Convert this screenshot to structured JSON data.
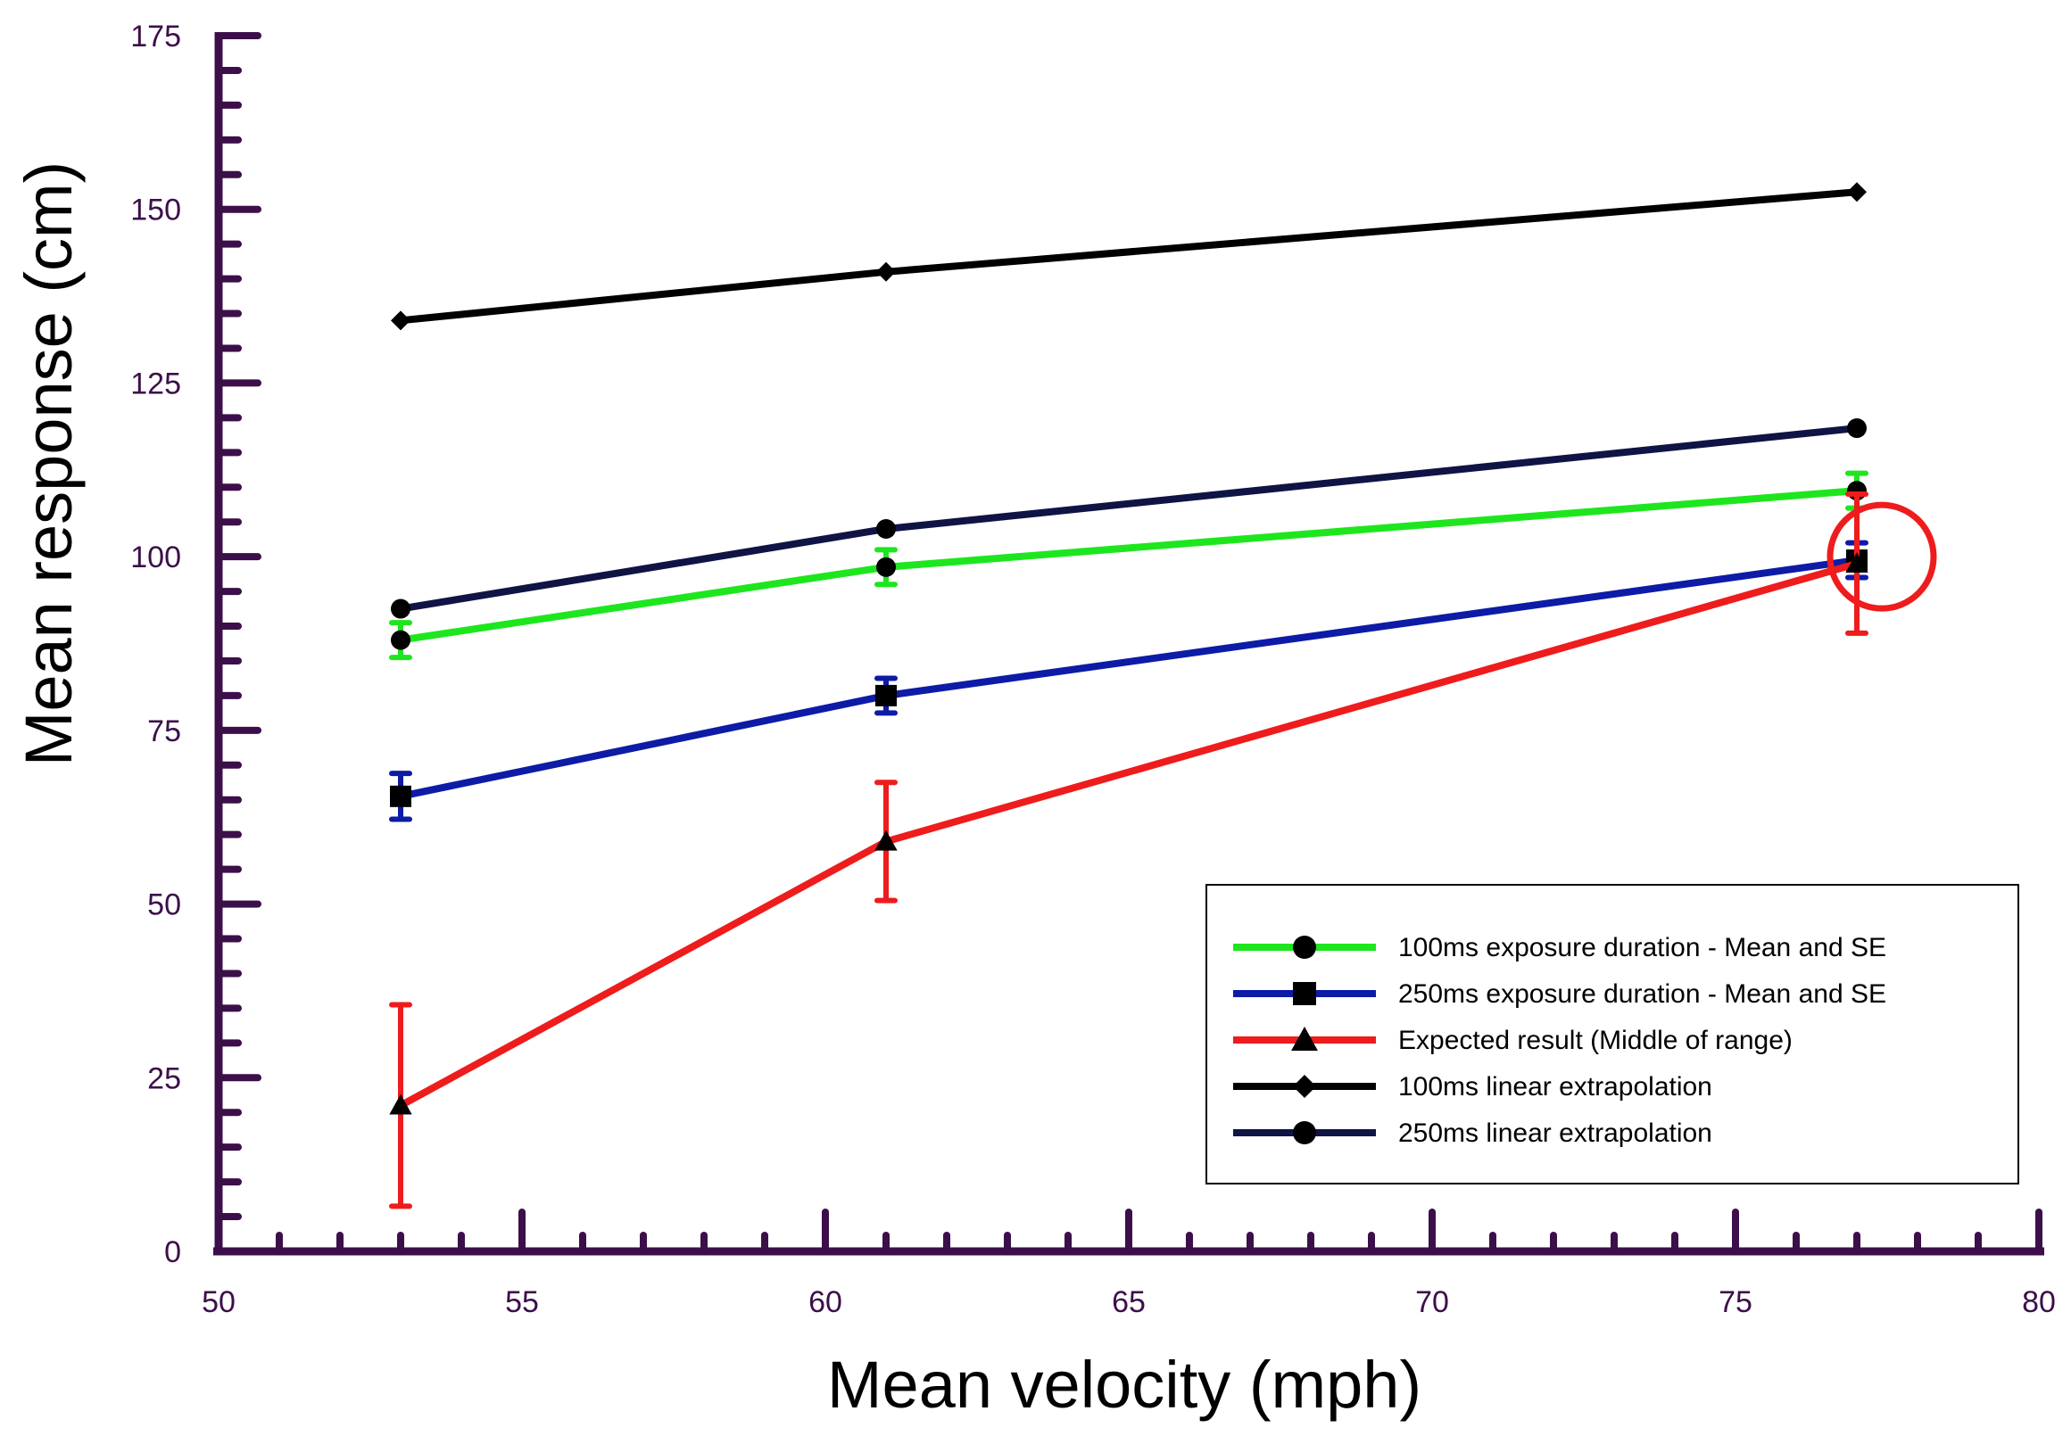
{
  "chart_data": {
    "type": "line",
    "title": "",
    "xlabel": "Mean velocity (mph)",
    "ylabel": "Mean response (cm)",
    "xlim": [
      50,
      80
    ],
    "ylim": [
      0,
      175
    ],
    "x_ticks": [
      50,
      55,
      60,
      65,
      70,
      75,
      80
    ],
    "y_ticks": [
      0,
      25,
      50,
      75,
      100,
      125,
      150,
      175
    ],
    "grid": false,
    "legend_placement": "lower-right",
    "axis_color": "#3c0f4a",
    "series": [
      {
        "name": "100ms exposure duration - Mean and SE",
        "color": "#1ee61e",
        "marker": "circle",
        "x": [
          53,
          61,
          77
        ],
        "y": [
          88,
          98.5,
          109.5
        ],
        "se": [
          2.5,
          2.5,
          2.5
        ]
      },
      {
        "name": "250ms exposure duration - Mean and SE",
        "color": "#0d1ba6",
        "marker": "square",
        "x": [
          53,
          61,
          77
        ],
        "y": [
          65.5,
          80,
          99.5
        ],
        "se": [
          3.3,
          2.5,
          2.5
        ]
      },
      {
        "name": "Expected result (Middle of range)",
        "color": "#ee1c1c",
        "marker": "triangle",
        "x": [
          53,
          61,
          77
        ],
        "y": [
          21,
          59,
          99
        ],
        "se": [
          14.5,
          8.5,
          10
        ]
      },
      {
        "name": "100ms linear extrapolation",
        "color": "#000000",
        "marker": "diamond",
        "x": [
          53,
          61,
          77
        ],
        "y": [
          134,
          141,
          152.5
        ]
      },
      {
        "name": "250ms linear extrapolation",
        "color": "#0f1445",
        "marker": "circle",
        "x": [
          53,
          61,
          77
        ],
        "y": [
          92.5,
          104,
          118.5
        ]
      }
    ],
    "annotations": [
      {
        "type": "circle",
        "color": "#ee1c1c",
        "x": 77,
        "y": 100
      }
    ]
  }
}
